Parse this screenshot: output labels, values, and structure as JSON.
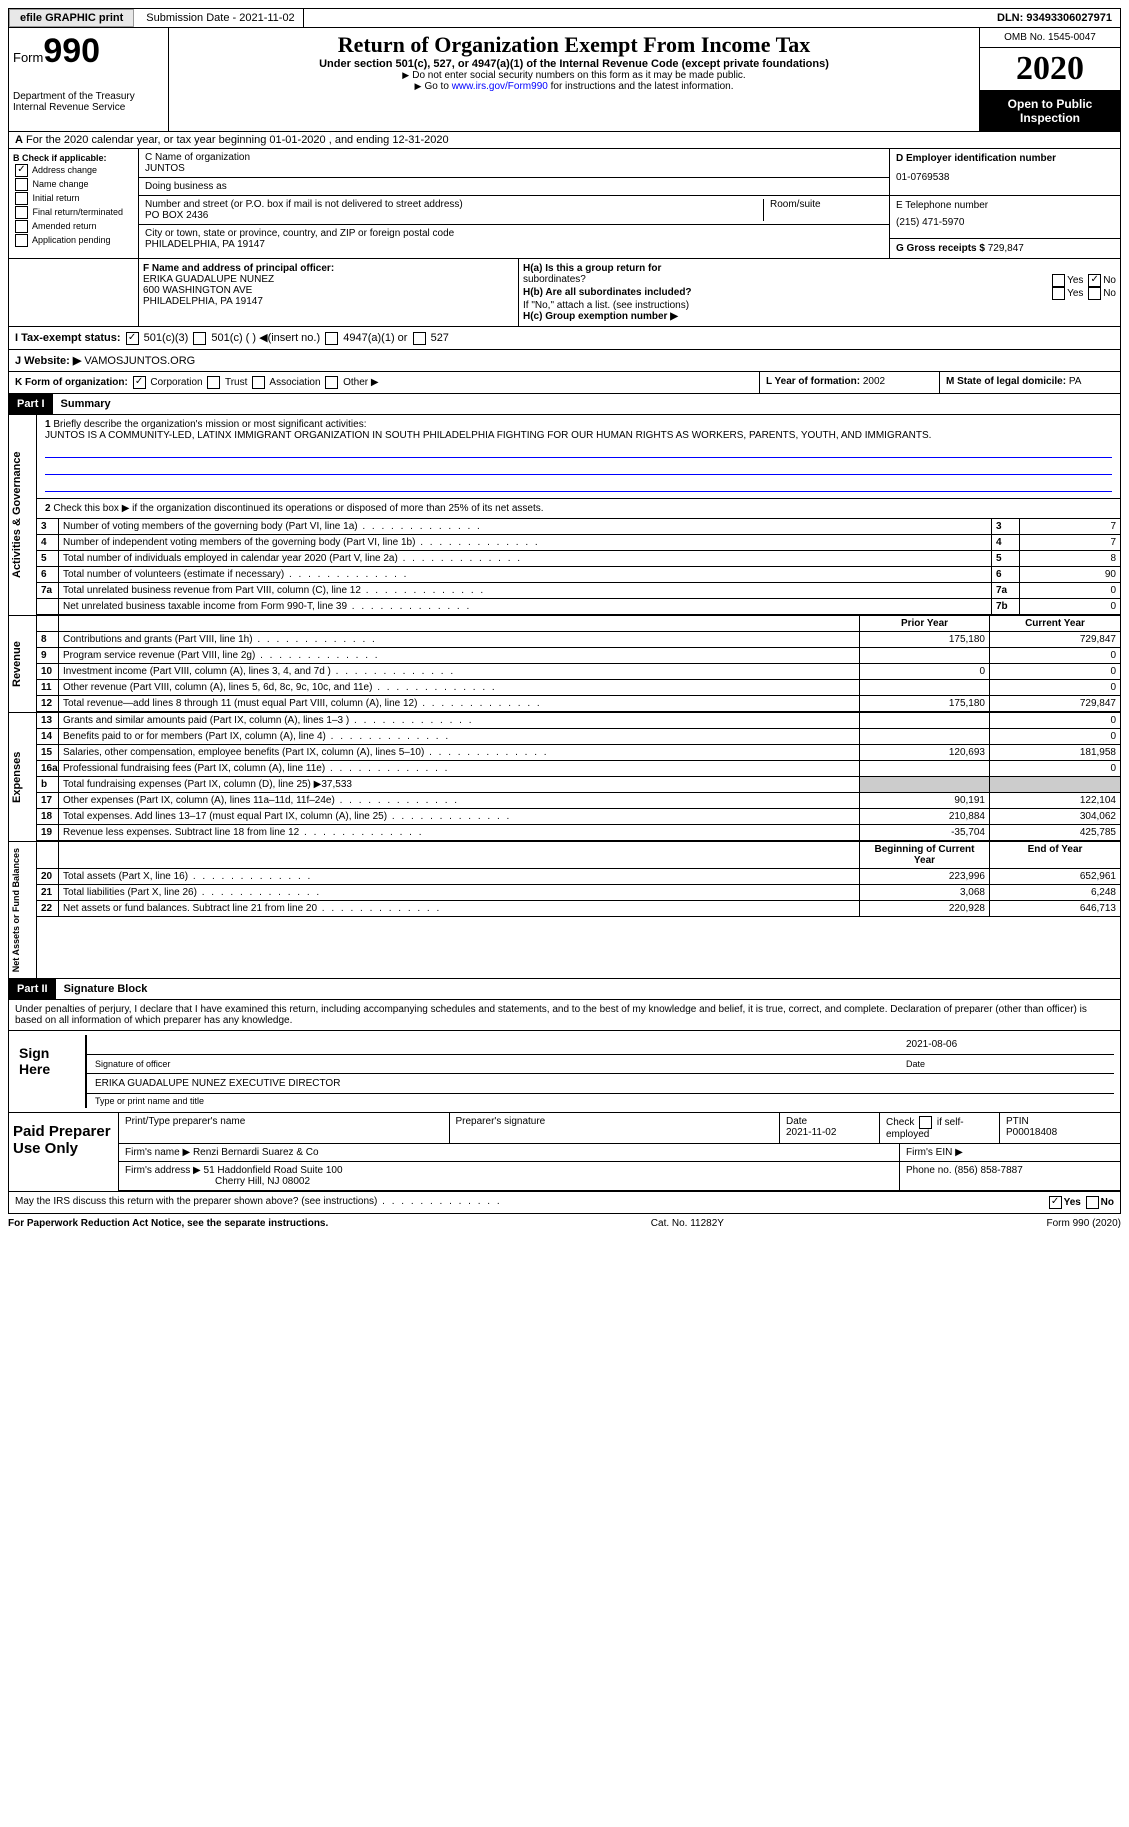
{
  "topbar": {
    "efile": "efile GRAPHIC print",
    "submission": "Submission Date - 2021-11-02",
    "dln": "DLN: 93493306027971"
  },
  "header": {
    "form_word": "Form",
    "form_no": "990",
    "dept": "Department of the Treasury",
    "irs": "Internal Revenue Service",
    "title": "Return of Organization Exempt From Income Tax",
    "sub": "Under section 501(c), 527, or 4947(a)(1) of the Internal Revenue Code (except private foundations)",
    "note1": "Do not enter social security numbers on this form as it may be made public.",
    "note2_pre": "Go to ",
    "note2_link": "www.irs.gov/Form990",
    "note2_post": " for instructions and the latest information.",
    "omb": "OMB No. 1545-0047",
    "year": "2020",
    "open": "Open to Public Inspection"
  },
  "a": {
    "text": "For the 2020 calendar year, or tax year beginning 01-01-2020   , and ending 12-31-2020"
  },
  "b": {
    "label": "B Check if applicable:",
    "items": [
      {
        "label": "Address change",
        "checked": true
      },
      {
        "label": "Name change",
        "checked": false
      },
      {
        "label": "Initial return",
        "checked": false
      },
      {
        "label": "Final return/terminated",
        "checked": false
      },
      {
        "label": "Amended return",
        "checked": false
      },
      {
        "label": "Application pending",
        "checked": false,
        "note": "pending"
      }
    ]
  },
  "c": {
    "name_lbl": "C Name of organization",
    "name": "JUNTOS",
    "dba_lbl": "Doing business as",
    "dba": "",
    "addr_lbl": "Number and street (or P.O. box if mail is not delivered to street address)",
    "room_lbl": "Room/suite",
    "addr": "PO BOX 2436",
    "city_lbl": "City or town, state or province, country, and ZIP or foreign postal code",
    "city": "PHILADELPHIA, PA  19147"
  },
  "d": {
    "ein_lbl": "D Employer identification number",
    "ein": "01-0769538",
    "tel_lbl": "E Telephone number",
    "tel": "(215) 471-5970",
    "gross_lbl": "G Gross receipts $",
    "gross": "729,847"
  },
  "f": {
    "lbl": "F  Name and address of principal officer:",
    "name": "ERIKA GUADALUPE NUNEZ",
    "addr1": "600 WASHINGTON AVE",
    "addr2": "PHILADELPHIA, PA  19147"
  },
  "h": {
    "a_lbl": "H(a)  Is this a group return for",
    "a_lbl2": "subordinates?",
    "a_yes": "Yes",
    "a_no": "No",
    "a_val": "no",
    "b_lbl": "H(b)  Are all subordinates included?",
    "b_yes": "Yes",
    "b_no": "No",
    "b_note": "If \"No,\" attach a list. (see instructions)",
    "c_lbl": "H(c)  Group exemption number ▶"
  },
  "i": {
    "lbl": "I   Tax-exempt status:",
    "opts": [
      {
        "label": "501(c)(3)",
        "checked": true
      },
      {
        "label": "501(c) (  ) ◀(insert no.)",
        "checked": false
      },
      {
        "label": "4947(a)(1) or",
        "checked": false
      },
      {
        "label": "527",
        "checked": false
      }
    ]
  },
  "j": {
    "lbl": "J   Website: ▶",
    "val": "VAMOSJUNTOS.ORG"
  },
  "k": {
    "lbl": "K Form of organization:",
    "opts": [
      {
        "label": "Corporation",
        "checked": true
      },
      {
        "label": "Trust",
        "checked": false
      },
      {
        "label": "Association",
        "checked": false
      },
      {
        "label": "Other ▶",
        "checked": false
      }
    ],
    "l_lbl": "L Year of formation:",
    "l_val": "2002",
    "m_lbl": "M State of legal domicile:",
    "m_val": "PA"
  },
  "part1": {
    "hdr": "Part I",
    "title": "Summary"
  },
  "governance": {
    "tab": "Activities & Governance",
    "q1_lbl": "1",
    "q1": "Briefly describe the organization's mission or most significant activities:",
    "mission": "JUNTOS IS A COMMUNITY-LED, LATINX IMMIGRANT ORGANIZATION IN SOUTH PHILADELPHIA FIGHTING FOR OUR HUMAN RIGHTS AS WORKERS, PARENTS, YOUTH, AND IMMIGRANTS.",
    "q2": "Check this box ▶     if the organization discontinued its operations or disposed of more than 25% of its net assets.",
    "lines": [
      {
        "n": "3",
        "t": "Number of voting members of the governing body (Part VI, line 1a)",
        "box": "3",
        "v": "7"
      },
      {
        "n": "4",
        "t": "Number of independent voting members of the governing body (Part VI, line 1b)",
        "box": "4",
        "v": "7"
      },
      {
        "n": "5",
        "t": "Total number of individuals employed in calendar year 2020 (Part V, line 2a)",
        "box": "5",
        "v": "8"
      },
      {
        "n": "6",
        "t": "Total number of volunteers (estimate if necessary)",
        "box": "6",
        "v": "90"
      },
      {
        "n": "7a",
        "t": "Total unrelated business revenue from Part VIII, column (C), line 12",
        "box": "7a",
        "v": "0"
      },
      {
        "n": "",
        "t": "Net unrelated business taxable income from Form 990-T, line 39",
        "box": "7b",
        "v": "0"
      }
    ]
  },
  "revenue": {
    "tab": "Revenue",
    "hdr_prior": "Prior Year",
    "hdr_curr": "Current Year",
    "lines": [
      {
        "n": "8",
        "t": "Contributions and grants (Part VIII, line 1h)",
        "p": "175,180",
        "c": "729,847"
      },
      {
        "n": "9",
        "t": "Program service revenue (Part VIII, line 2g)",
        "p": "",
        "c": "0"
      },
      {
        "n": "10",
        "t": "Investment income (Part VIII, column (A), lines 3, 4, and 7d )",
        "p": "0",
        "c": "0"
      },
      {
        "n": "11",
        "t": "Other revenue (Part VIII, column (A), lines 5, 6d, 8c, 9c, 10c, and 11e)",
        "p": "",
        "c": "0"
      },
      {
        "n": "12",
        "t": "Total revenue—add lines 8 through 11 (must equal Part VIII, column (A), line 12)",
        "p": "175,180",
        "c": "729,847"
      }
    ]
  },
  "expenses": {
    "tab": "Expenses",
    "lines": [
      {
        "n": "13",
        "t": "Grants and similar amounts paid (Part IX, column (A), lines 1–3 )",
        "p": "",
        "c": "0"
      },
      {
        "n": "14",
        "t": "Benefits paid to or for members (Part IX, column (A), line 4)",
        "p": "",
        "c": "0"
      },
      {
        "n": "15",
        "t": "Salaries, other compensation, employee benefits (Part IX, column (A), lines 5–10)",
        "p": "120,693",
        "c": "181,958"
      },
      {
        "n": "16a",
        "t": "Professional fundraising fees (Part IX, column (A), line 11e)",
        "p": "",
        "c": "0"
      },
      {
        "n": "b",
        "t": "Total fundraising expenses (Part IX, column (D), line 25) ▶37,533",
        "shade": true
      },
      {
        "n": "17",
        "t": "Other expenses (Part IX, column (A), lines 11a–11d, 11f–24e)",
        "p": "90,191",
        "c": "122,104"
      },
      {
        "n": "18",
        "t": "Total expenses. Add lines 13–17 (must equal Part IX, column (A), line 25)",
        "p": "210,884",
        "c": "304,062"
      },
      {
        "n": "19",
        "t": "Revenue less expenses. Subtract line 18 from line 12",
        "p": "-35,704",
        "c": "425,785"
      }
    ]
  },
  "netassets": {
    "tab": "Net Assets or Fund Balances",
    "hdr_beg": "Beginning of Current Year",
    "hdr_end": "End of Year",
    "lines": [
      {
        "n": "20",
        "t": "Total assets (Part X, line 16)",
        "p": "223,996",
        "c": "652,961"
      },
      {
        "n": "21",
        "t": "Total liabilities (Part X, line 26)",
        "p": "3,068",
        "c": "6,248"
      },
      {
        "n": "22",
        "t": "Net assets or fund balances. Subtract line 21 from line 20",
        "p": "220,928",
        "c": "646,713"
      }
    ]
  },
  "part2": {
    "hdr": "Part II",
    "title": "Signature Block"
  },
  "sig": {
    "pen": "Under penalties of perjury, I declare that I have examined this return, including accompanying schedules and statements, and to the best of my knowledge and belief, it is true, correct, and complete. Declaration of preparer (other than officer) is based on all information of which preparer has any knowledge.",
    "here": "Sign Here",
    "sig_lbl": "Signature of officer",
    "date_lbl": "Date",
    "date": "2021-08-06",
    "name": "ERIKA GUADALUPE NUNEZ  EXECUTIVE DIRECTOR",
    "name_lbl": "Type or print name and title"
  },
  "prep": {
    "title": "Paid Preparer Use Only",
    "h1": "Print/Type preparer's name",
    "h2": "Preparer's signature",
    "h3": "Date",
    "h3v": "2021-11-02",
    "h4": "Check      if self-employed",
    "h5": "PTIN",
    "h5v": "P00018408",
    "firm_lbl": "Firm's name   ▶",
    "firm": "Renzi Bernardi Suarez & Co",
    "ein_lbl": "Firm's EIN ▶",
    "addr_lbl": "Firm's address ▶",
    "addr1": "51 Haddonfield Road Suite 100",
    "addr2": "Cherry Hill, NJ  08002",
    "phone_lbl": "Phone no.",
    "phone": "(856) 858-7887",
    "discuss": "May the IRS discuss this return with the preparer shown above? (see instructions)",
    "yes": "Yes",
    "no": "No",
    "discuss_val": "yes"
  },
  "foot": {
    "l": "For Paperwork Reduction Act Notice, see the separate instructions.",
    "c": "Cat. No. 11282Y",
    "r": "Form 990 (2020)"
  }
}
